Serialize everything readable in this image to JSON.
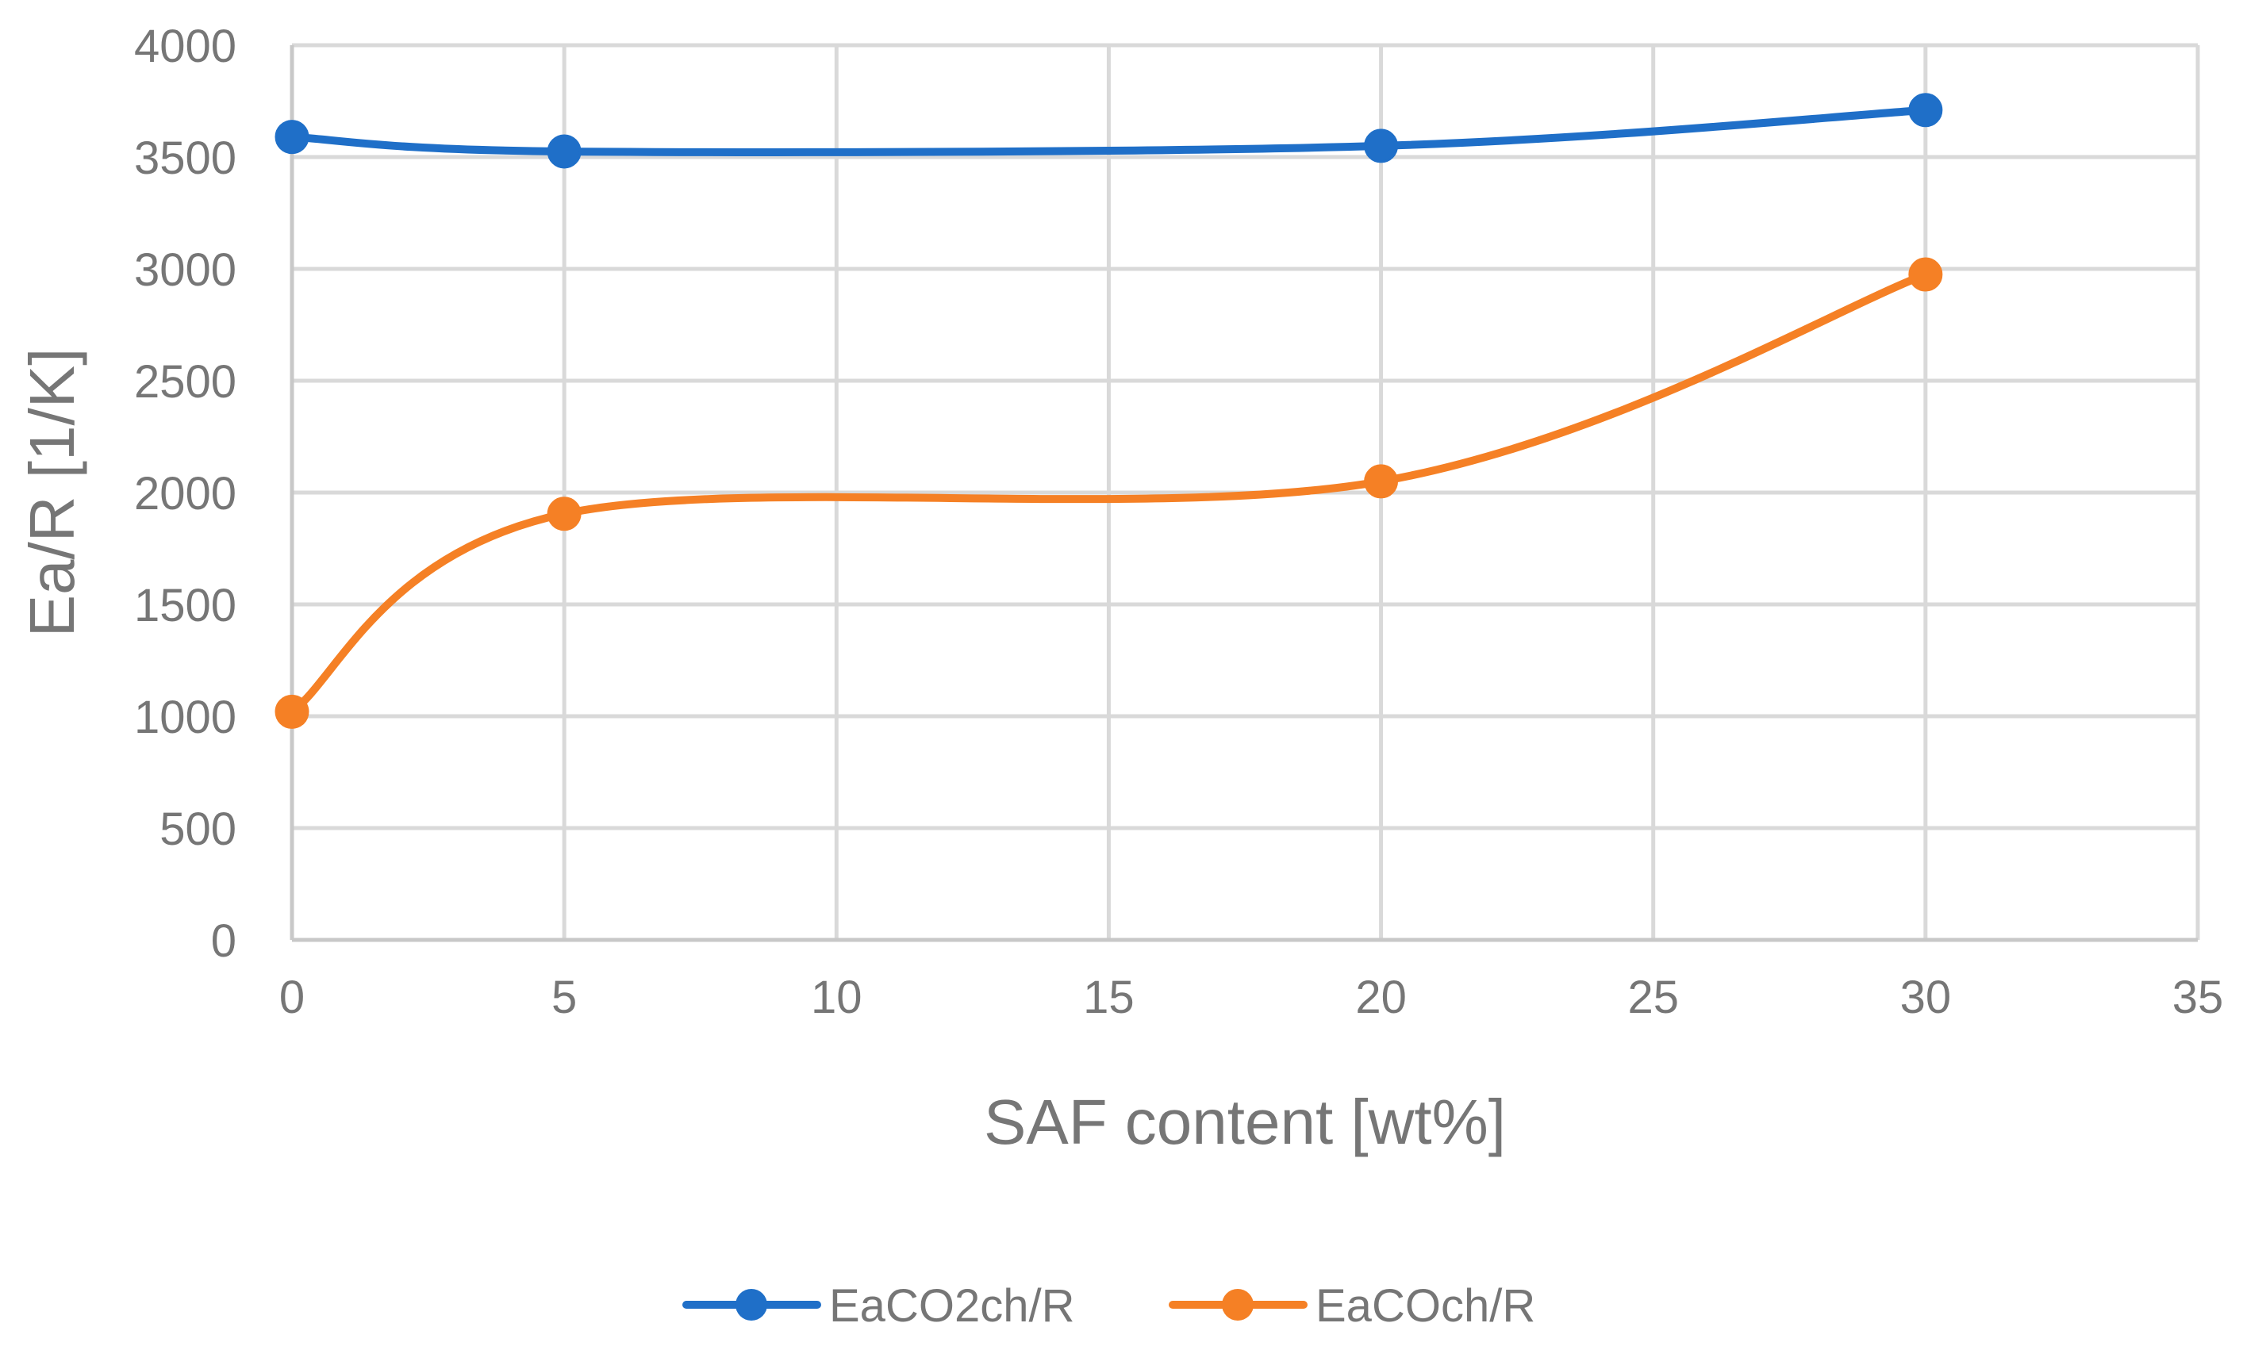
{
  "chart_data": {
    "type": "line",
    "title": "",
    "xlabel": "SAF content [wt%]",
    "ylabel": "Ea/R [1/K]",
    "xlim": [
      0,
      35
    ],
    "ylim": [
      0,
      4000
    ],
    "x_ticks": [
      0,
      5,
      10,
      15,
      20,
      25,
      30,
      35
    ],
    "y_ticks": [
      0,
      500,
      1000,
      1500,
      2000,
      2500,
      3000,
      3500,
      4000
    ],
    "grid": true,
    "smooth": true,
    "legend_position": "bottom",
    "series": [
      {
        "name": "EaCO2ch/R",
        "color": "#1f6fc8",
        "x": [
          0,
          5,
          20,
          30
        ],
        "y": [
          3590,
          3525,
          3550,
          3710
        ]
      },
      {
        "name": "EaCOch/R",
        "color": "#f58025",
        "x": [
          0,
          5,
          20,
          30
        ],
        "y": [
          1020,
          1905,
          2050,
          2975
        ]
      }
    ]
  }
}
